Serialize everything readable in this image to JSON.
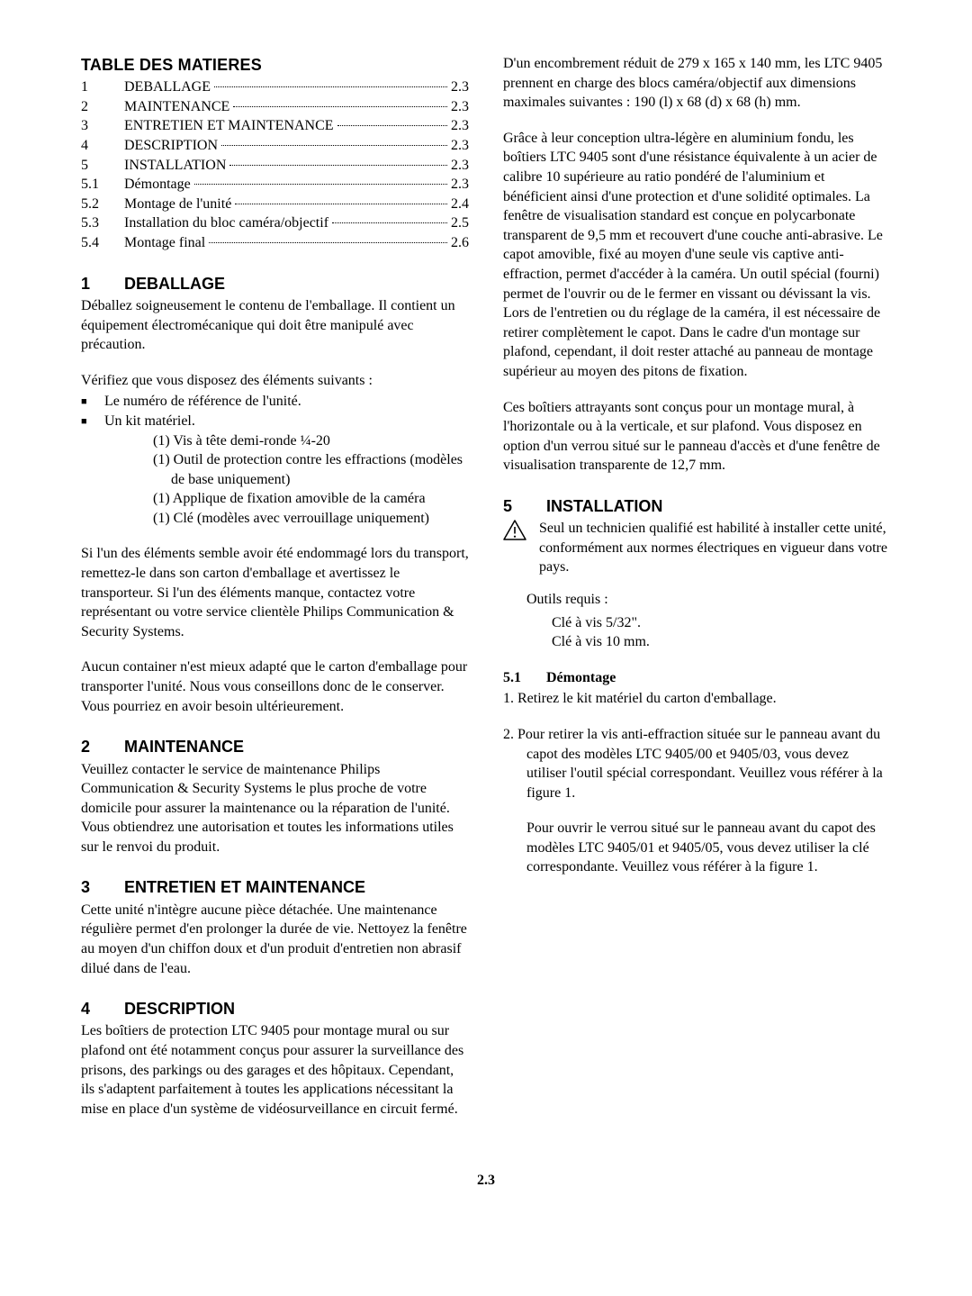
{
  "page_number": "2.3",
  "left": {
    "toc_title": "TABLE DES MATIERES",
    "toc": [
      {
        "num": "1",
        "label": "DEBALLAGE",
        "page": "2.3"
      },
      {
        "num": "2",
        "label": "MAINTENANCE",
        "page": "2.3"
      },
      {
        "num": "3",
        "label": "ENTRETIEN ET MAINTENANCE",
        "page": "2.3"
      },
      {
        "num": "4",
        "label": "DESCRIPTION",
        "page": "2.3"
      },
      {
        "num": "5",
        "label": "INSTALLATION",
        "page": "2.3"
      },
      {
        "num": "5.1",
        "label": "Démontage",
        "page": "2.3"
      },
      {
        "num": "5.2",
        "label": "Montage de l'unité",
        "page": "2.4"
      },
      {
        "num": "5.3",
        "label": "Installation du bloc caméra/objectif",
        "page": "2.5"
      },
      {
        "num": "5.4",
        "label": "Montage final",
        "page": "2.6"
      }
    ],
    "s1": {
      "num": "1",
      "title": "DEBALLAGE",
      "p1": "Déballez soigneusement le contenu de l'emballage. Il contient un équipement électromécanique qui doit être manipulé avec précaution.",
      "p2": "Vérifiez que vous disposez des éléments suivants :",
      "b1": "Le numéro de référence de l'unité.",
      "b2": "Un kit matériel.",
      "kit": [
        "(1) Vis à tête demi-ronde ¼-20",
        "(1) Outil de protection contre les effractions (modèles de base uniquement)",
        "(1) Applique de fixation amovible de la caméra",
        "(1) Clé (modèles avec verrouillage uniquement)"
      ],
      "p3": "Si l'un des éléments semble avoir été endommagé lors du transport, remettez-le dans son carton d'emballage et avertissez le transporteur. Si l'un des éléments manque, contactez votre représentant ou votre service clientèle Philips Communication & Security Systems.",
      "p4": "Aucun container n'est mieux adapté que le carton d'emballage pour transporter l'unité. Nous vous conseillons donc de le conserver. Vous pourriez en avoir besoin ultérieurement."
    },
    "s2": {
      "num": "2",
      "title": "MAINTENANCE",
      "p1": "Veuillez contacter le service de maintenance Philips Communication & Security Systems le plus proche de votre domicile pour assurer la maintenance ou la réparation de l'unité. Vous obtiendrez une autorisation et toutes les informations utiles sur le renvoi du produit."
    },
    "s3": {
      "num": "3",
      "title": "ENTRETIEN ET MAINTENANCE",
      "p1": "Cette unité n'intègre aucune pièce détachée. Une maintenance régulière permet d'en prolonger la durée de vie. Nettoyez la fenêtre au moyen d'un chiffon doux et d'un produit d'entretien non abrasif dilué dans de l'eau."
    },
    "s4": {
      "num": "4",
      "title": "DESCRIPTION",
      "p1": "Les boîtiers de protection LTC 9405 pour montage mural ou sur plafond ont été notamment conçus pour assurer la surveillance des prisons, des parkings ou des garages et des hôpitaux. Cependant, ils s'adaptent parfaitement à toutes les applications nécessitant la mise en place d'un système de vidéosurveillance en circuit fermé."
    }
  },
  "right": {
    "desc_p2": "D'un encombrement réduit de 279 x 165 x 140 mm, les LTC 9405 prennent en charge des blocs caméra/objectif aux dimensions maximales suivantes : 190 (l) x 68 (d) x 68 (h) mm.",
    "desc_p3": "Grâce à leur conception ultra-légère en aluminium fondu, les boîtiers LTC 9405 sont d'une résistance équivalente à un acier de calibre 10 supérieure au ratio pondéré de l'aluminium et bénéficient ainsi d'une protection et d'une solidité optimales. La fenêtre de visualisation standard est conçue en polycarbonate transparent de 9,5 mm et recouvert d'une couche anti-abrasive. Le capot amovible, fixé au moyen d'une seule vis captive anti-effraction, permet d'accéder à la caméra. Un outil spécial (fourni) permet de l'ouvrir ou de le fermer en vissant ou dévissant la vis. Lors de l'entretien ou du réglage de la caméra, il est nécessaire de retirer complètement le capot. Dans le cadre d'un montage sur plafond, cependant, il doit rester attaché au panneau de montage supérieur au moyen des pitons de fixation.",
    "desc_p4": "Ces boîtiers attrayants sont conçus pour un montage mural, à l'horizontale ou à la verticale, et sur plafond. Vous disposez en option d'un verrou situé sur le panneau d'accès et d'une fenêtre de visualisation transparente de 12,7 mm.",
    "s5": {
      "num": "5",
      "title": "INSTALLATION",
      "caution": "Seul un technicien qualifié est habilité à installer cette unité, conformément aux normes électriques en vigueur dans votre pays.",
      "tools_label": "Outils requis :",
      "tools": [
        "Clé à vis 5/32\".",
        "Clé à vis 10 mm."
      ]
    },
    "s51": {
      "num": "5.1",
      "title": "Démontage",
      "step1": "1.  Retirez le kit matériel du carton d'emballage.",
      "step2a": "2.  Pour retirer la vis anti-effraction située sur le panneau avant du capot des modèles LTC 9405/00 et 9405/03, vous devez utiliser l'outil spécial correspondant. Veuillez vous référer à la figure 1.",
      "step2b": "Pour ouvrir le verrou situé sur le panneau avant du capot des modèles LTC 9405/01 et 9405/05, vous devez utiliser la clé correspondante. Veuillez vous référer à la figure 1."
    }
  }
}
